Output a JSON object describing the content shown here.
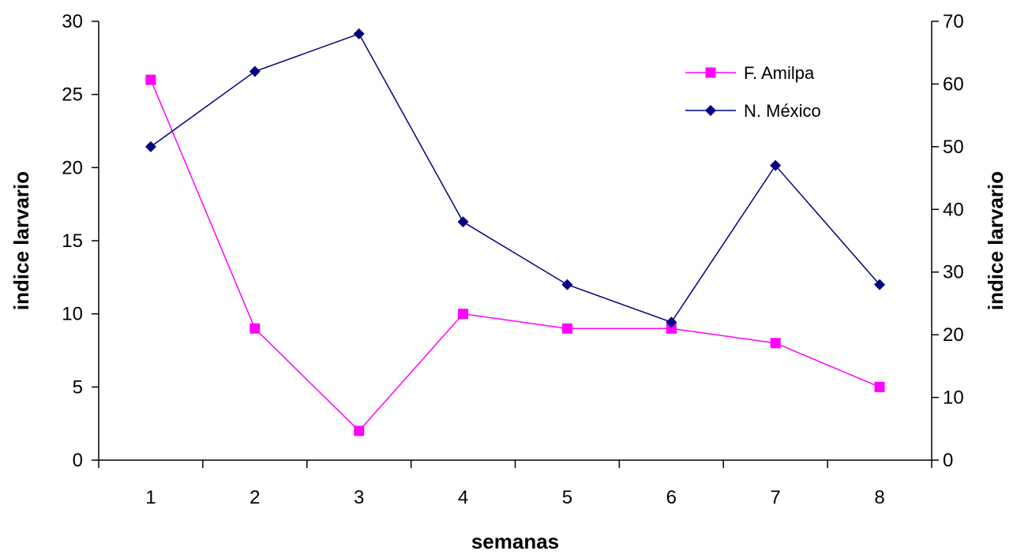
{
  "chart_data": {
    "type": "line",
    "title": "",
    "xlabel": "semanas",
    "ylabel": "indice larvario",
    "y2label": "indice larvario",
    "categories": [
      "1",
      "2",
      "3",
      "4",
      "5",
      "6",
      "7",
      "8"
    ],
    "ylim": [
      0,
      30
    ],
    "y_ticks": [
      0,
      5,
      10,
      15,
      20,
      25,
      30
    ],
    "y2lim": [
      0,
      70
    ],
    "y2_ticks": [
      0,
      10,
      20,
      30,
      40,
      50,
      60,
      70
    ],
    "grid": false,
    "legend_position": "top-right",
    "series": [
      {
        "name": "F. Amilpa",
        "axis": "left",
        "color": "#ff00ff",
        "marker": "square",
        "values": [
          26,
          9,
          2,
          10,
          9,
          9,
          8,
          5
        ]
      },
      {
        "name": "N. México",
        "axis": "right",
        "color": "#000080",
        "marker": "diamond",
        "values": [
          50,
          62,
          68,
          38,
          28,
          22,
          47,
          28
        ]
      }
    ]
  }
}
